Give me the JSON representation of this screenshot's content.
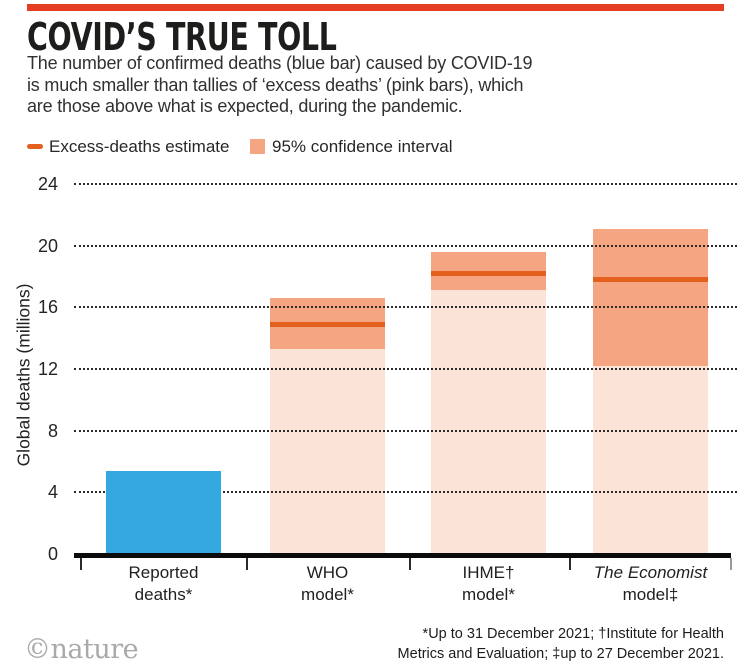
{
  "colors": {
    "rule-red": "#e63e23",
    "title-ink": "#1d1d1b",
    "body-ink": "#2e2e2e",
    "blue-bar": "#33a9e0",
    "ci-light": "#fbe3d7",
    "ci-band": "#f6a583",
    "estimate-line": "#e4601d",
    "grid-ink": "#2b2b2b",
    "logo-gray": "#a9a9a9"
  },
  "header": {
    "title": "COVID’S TRUE TOLL",
    "subtitle_lines": [
      "The number of confirmed deaths (blue bar) caused by COVID-19",
      "is much smaller than tallies of ‘excess deaths’ (pink bars), which",
      "are those above what is expected, during the pandemic."
    ]
  },
  "legend": {
    "estimate_label": "Excess-deaths estimate",
    "ci_label": "95% confidence interval"
  },
  "chart_data": {
    "type": "bar",
    "title": "COVID’S TRUE TOLL",
    "ylabel": "Global deaths (millions)",
    "ylim": [
      0,
      24
    ],
    "yticks": [
      0,
      4,
      8,
      12,
      16,
      20,
      24
    ],
    "grid": "horizontal-dotted",
    "unit": "millions of global deaths",
    "categories": [
      {
        "label_line1": "Reported",
        "label_line2": "deaths*",
        "kind": "reported",
        "value": 5.4
      },
      {
        "label_line1": "WHO",
        "label_line2": "model*",
        "kind": "excess",
        "estimate": 14.9,
        "ci_low": 13.3,
        "ci_high": 16.6
      },
      {
        "label_line1": "IHME†",
        "label_line2": "model*",
        "kind": "excess",
        "estimate": 18.2,
        "ci_low": 17.1,
        "ci_high": 19.6
      },
      {
        "label_line1": "The Economist",
        "label_line1_italic": true,
        "label_line2": "model‡",
        "kind": "excess",
        "estimate": 17.8,
        "ci_low": 12.2,
        "ci_high": 21.1
      }
    ]
  },
  "footer": {
    "note_line1": "*Up to 31 December 2021; †Institute for Health",
    "note_line2": "Metrics and Evaluation; ‡up to 27 December 2021.",
    "logo": "©nature"
  }
}
